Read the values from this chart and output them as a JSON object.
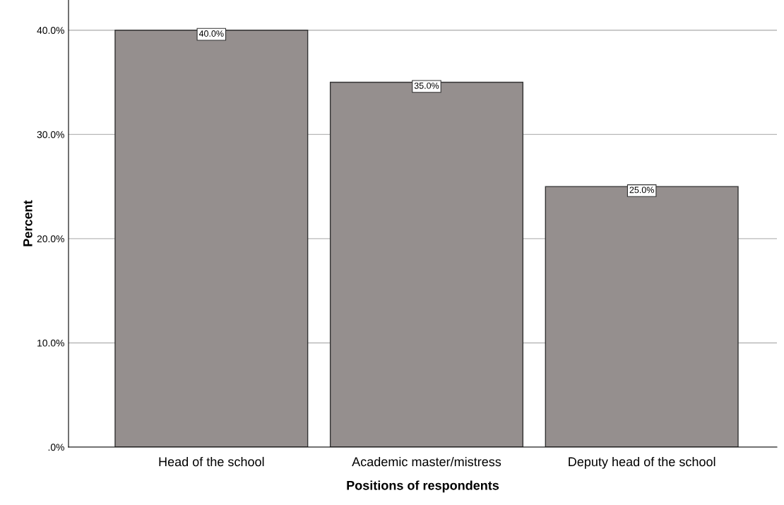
{
  "chart_data": {
    "type": "bar",
    "xlabel": "Positions of respondents",
    "ylabel": "Percent",
    "categories": [
      "Head of the school",
      "Academic master/mistress",
      "Deputy head of the school"
    ],
    "values": [
      40.0,
      35.0,
      25.0
    ],
    "color": "#958f8e",
    "value_labels": [
      "40.0%",
      "35.0%",
      "25.0%"
    ],
    "ylim": [
      0,
      42.9
    ],
    "yticks": [
      {
        "value": 0,
        "label": ".0%"
      },
      {
        "value": 10,
        "label": "10.0%"
      },
      {
        "value": 20,
        "label": "20.0%"
      },
      {
        "value": 30,
        "label": "30.0%"
      },
      {
        "value": 40,
        "label": "40.0%"
      }
    ],
    "grid": "y",
    "legend": false
  }
}
